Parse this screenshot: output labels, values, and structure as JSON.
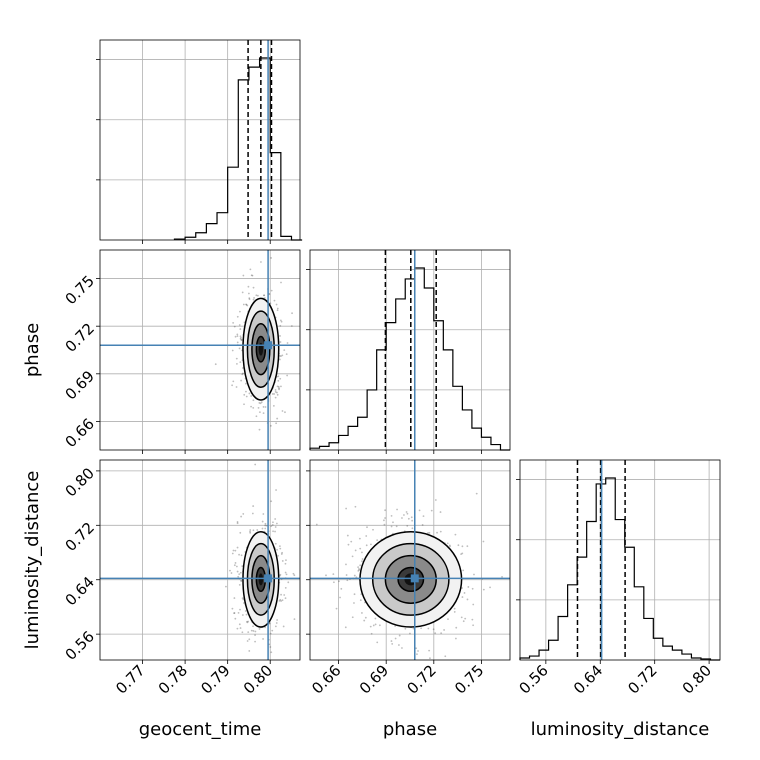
{
  "chart_data": {
    "type": "corner",
    "parameters": [
      "geocent_time",
      "phase",
      "luminosity_distance"
    ],
    "axis_labels": {
      "x": [
        "geocent_time",
        "phase",
        "luminosity_distance"
      ],
      "y": [
        "",
        "phase",
        "luminosity_distance"
      ]
    },
    "ranges": {
      "geocent_time": [
        0.76,
        0.807
      ],
      "phase": [
        0.642,
        0.768
      ],
      "luminosity_distance": [
        0.522,
        0.816
      ]
    },
    "ticks": {
      "geocent_time": [
        "0.77",
        "0.78",
        "0.79",
        "0.80"
      ],
      "phase": [
        "0.66",
        "0.69",
        "0.72",
        "0.75"
      ],
      "luminosity_distance": [
        "0.56",
        "0.64",
        "0.72",
        "0.80"
      ]
    },
    "truths": {
      "geocent_time": 0.7995,
      "phase": 0.708,
      "luminosity_distance": 0.642
    },
    "truth_color": "#4682b4",
    "histograms": {
      "geocent_time": {
        "edges": [
          0.7775,
          0.78,
          0.7825,
          0.785,
          0.7875,
          0.79,
          0.7925,
          0.795,
          0.7975,
          0.8,
          0.8025,
          0.805,
          0.8075
        ],
        "counts": [
          0.005,
          0.015,
          0.04,
          0.09,
          0.15,
          0.4,
          0.88,
          0.95,
          1.0,
          0.48,
          0.02,
          0.0
        ],
        "quantiles": [
          0.7948,
          0.7978,
          0.8003
        ]
      },
      "phase": {
        "edges": [
          0.642,
          0.648,
          0.654,
          0.66,
          0.666,
          0.672,
          0.678,
          0.684,
          0.69,
          0.696,
          0.702,
          0.708,
          0.714,
          0.72,
          0.726,
          0.732,
          0.738,
          0.744,
          0.75,
          0.756,
          0.762,
          0.768
        ],
        "counts": [
          0.01,
          0.02,
          0.04,
          0.08,
          0.13,
          0.18,
          0.33,
          0.55,
          0.7,
          0.83,
          0.94,
          1.0,
          0.89,
          0.71,
          0.55,
          0.35,
          0.22,
          0.12,
          0.07,
          0.03,
          0.0
        ],
        "quantiles": [
          0.6895,
          0.7055,
          0.7215
        ]
      },
      "luminosity_distance": {
        "edges": [
          0.522,
          0.536,
          0.55,
          0.564,
          0.578,
          0.592,
          0.606,
          0.62,
          0.634,
          0.648,
          0.662,
          0.676,
          0.69,
          0.704,
          0.718,
          0.732,
          0.746,
          0.76,
          0.774,
          0.788,
          0.802,
          0.816
        ],
        "counts": [
          0.01,
          0.02,
          0.05,
          0.1,
          0.22,
          0.38,
          0.52,
          0.7,
          0.89,
          0.92,
          0.71,
          0.57,
          0.37,
          0.21,
          0.11,
          0.07,
          0.05,
          0.03,
          0.01,
          0.005,
          0.0
        ],
        "quantiles": [
          0.6065,
          0.6405,
          0.6765
        ]
      }
    },
    "contours": [
      {
        "x": "geocent_time",
        "y": "phase",
        "mean": [
          0.7978,
          0.7055
        ],
        "sigma": [
          0.0021,
          0.016
        ],
        "levels_sigma": [
          0.5,
          1.0,
          1.5,
          2.0
        ]
      },
      {
        "x": "geocent_time",
        "y": "luminosity_distance",
        "mean": [
          0.7978,
          0.6405
        ],
        "sigma": [
          0.0021,
          0.035
        ],
        "levels_sigma": [
          0.5,
          1.0,
          1.5,
          2.0
        ]
      },
      {
        "x": "phase",
        "y": "luminosity_distance",
        "mean": [
          0.7055,
          0.6405
        ],
        "sigma": [
          0.016,
          0.035
        ],
        "levels_sigma": [
          0.5,
          1.0,
          1.5,
          2.0
        ]
      }
    ],
    "grid": true,
    "histtype": "step"
  }
}
